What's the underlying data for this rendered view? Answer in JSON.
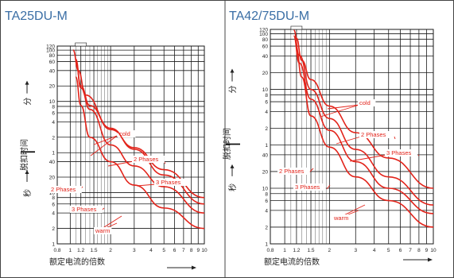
{
  "colors": {
    "frame": "#444444",
    "grid": "#1a1a1a",
    "curve": "#e2231a",
    "text": "#222222",
    "title": "#3a6ea5"
  },
  "chart_data": [
    {
      "type": "line",
      "title": "TA25DU-M",
      "xlabel": "额定电流的倍数",
      "ylabel": "脱扣时间",
      "y_upper_unit": "分",
      "y_lower_unit": "秒",
      "x_scale": "log",
      "xlim": [
        0.8,
        10
      ],
      "x_ticks": [
        "0.8",
        "1",
        "1.2",
        "1.5",
        "2",
        "3",
        "4",
        "5",
        "6",
        "7",
        "8",
        "9",
        "10"
      ],
      "y_upper_ticks": [
        "120",
        "100",
        "80",
        "60",
        "40",
        "20",
        "10",
        "8",
        "6",
        "4",
        "2",
        "1"
      ],
      "y_lower_ticks": [
        "40",
        "20",
        "10",
        "8",
        "6",
        "4",
        "2",
        "1"
      ],
      "series": [
        {
          "name": "cold",
          "x": [
            1.1,
            1.2,
            1.4,
            2,
            3,
            5,
            10
          ],
          "y_seconds": [
            3600,
            1200,
            500,
            170,
            75,
            28,
            8
          ]
        },
        {
          "name": "2 Phases",
          "x": [
            1.05,
            1.15,
            1.3,
            2,
            3,
            5,
            10
          ],
          "y_seconds": [
            6000,
            2400,
            800,
            180,
            70,
            22,
            6
          ]
        },
        {
          "name": "3 Phases",
          "x": [
            1.1,
            1.2,
            1.4,
            2,
            3,
            5,
            10
          ],
          "y_seconds": [
            4000,
            1100,
            420,
            85,
            33,
            13,
            4
          ]
        },
        {
          "name": "warm",
          "x": [
            1.1,
            1.2,
            1.4,
            2,
            3,
            5,
            10
          ],
          "y_seconds": [
            1800,
            500,
            120,
            40,
            14,
            5,
            2
          ]
        }
      ]
    },
    {
      "type": "line",
      "title": "TA42/75DU-M",
      "xlabel": "额定电流的倍数",
      "ylabel": "脱扣时间",
      "y_upper_unit": "分",
      "y_lower_unit": "秒",
      "x_scale": "log",
      "xlim": [
        0.8,
        10
      ],
      "x_ticks": [
        "0.8",
        "1",
        "1.2",
        "1.5",
        "2",
        "3",
        "4",
        "5",
        "6",
        "7",
        "8",
        "9",
        "10"
      ],
      "y_upper_ticks": [
        "120",
        "100",
        "80",
        "60",
        "40",
        "20",
        "10",
        "8",
        "6",
        "4",
        "2",
        "1"
      ],
      "y_lower_ticks": [
        "40",
        "20",
        "10",
        "8",
        "6",
        "4",
        "2",
        "1"
      ],
      "series": [
        {
          "name": "cold",
          "x": [
            1.2,
            1.3,
            1.5,
            2,
            3,
            5,
            10
          ],
          "y_seconds": [
            5000,
            2000,
            900,
            300,
            100,
            35,
            10
          ]
        },
        {
          "name": "2 Phases",
          "x": [
            1.15,
            1.25,
            1.5,
            2,
            3,
            5,
            10
          ],
          "y_seconds": [
            7000,
            2500,
            600,
            180,
            50,
            16,
            5
          ]
        },
        {
          "name": "3 Phases",
          "x": [
            1.15,
            1.25,
            1.5,
            2,
            3,
            5,
            10
          ],
          "y_seconds": [
            5500,
            1800,
            400,
            110,
            30,
            10,
            3.5
          ]
        },
        {
          "name": "warm",
          "x": [
            1.2,
            1.3,
            1.5,
            2,
            3,
            5,
            10
          ],
          "y_seconds": [
            3000,
            1000,
            200,
            55,
            16,
            6,
            2
          ]
        }
      ]
    }
  ]
}
